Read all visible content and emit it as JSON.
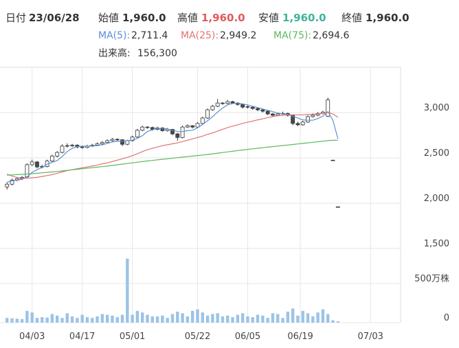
{
  "header": {
    "date_label": "日付",
    "date": "23/06/28",
    "open_label": "始値",
    "open": "1,960.0",
    "high_label": "高値",
    "high": "1,960.0",
    "low_label": "安値",
    "low": "1,960.0",
    "close_label": "終値",
    "close": "1,960.0",
    "volume_label": "出来高:",
    "volume": "156,300"
  },
  "chart_data": {
    "type": "candlestick",
    "open": [
      2180,
      2210,
      2255,
      2270,
      2290,
      2425,
      2455,
      2400,
      2405,
      2465,
      2520,
      2560,
      2630,
      2635,
      2640,
      2620,
      2615,
      2630,
      2640,
      2655,
      2670,
      2690,
      2705,
      2700,
      2650,
      2690,
      2730,
      2805,
      2840,
      2835,
      2815,
      2830,
      2800,
      2815,
      2765,
      2725,
      2840,
      2855,
      2840,
      2880,
      2940,
      3030,
      3070,
      3105,
      3100,
      3120,
      3105,
      3090,
      3065,
      3060,
      3045,
      3030,
      3015,
      2985,
      2970,
      2985,
      2990,
      2970,
      2880,
      2865,
      2895,
      2955,
      2970,
      2990,
      2960,
      2475,
      1960
    ],
    "high": [
      2230,
      2270,
      2285,
      2300,
      2440,
      2480,
      2465,
      2425,
      2480,
      2535,
      2575,
      2650,
      2660,
      2655,
      2650,
      2635,
      2645,
      2655,
      2670,
      2685,
      2705,
      2720,
      2715,
      2705,
      2700,
      2745,
      2820,
      2855,
      2850,
      2845,
      2845,
      2840,
      2830,
      2820,
      2775,
      2855,
      2870,
      2860,
      2895,
      2955,
      3045,
      3085,
      3150,
      3115,
      3140,
      3130,
      3115,
      3100,
      3080,
      3070,
      3055,
      3040,
      3025,
      2995,
      3000,
      3010,
      3000,
      2980,
      2900,
      2910,
      2970,
      2990,
      3005,
      3020,
      3165,
      2475,
      1960
    ],
    "low": [
      2150,
      2195,
      2240,
      2255,
      2280,
      2410,
      2385,
      2385,
      2395,
      2450,
      2505,
      2550,
      2615,
      2620,
      2605,
      2600,
      2605,
      2620,
      2630,
      2645,
      2660,
      2680,
      2685,
      2630,
      2640,
      2680,
      2720,
      2795,
      2820,
      2800,
      2805,
      2790,
      2790,
      2750,
      2690,
      2715,
      2830,
      2825,
      2830,
      2870,
      2930,
      3020,
      3060,
      3085,
      3090,
      3095,
      3075,
      3045,
      3045,
      3030,
      3015,
      3000,
      2970,
      2955,
      2960,
      2975,
      2955,
      2860,
      2850,
      2855,
      2885,
      2945,
      2960,
      2980,
      2950,
      2475,
      1960
    ],
    "close": [
      2210,
      2255,
      2270,
      2285,
      2425,
      2455,
      2400,
      2405,
      2465,
      2520,
      2560,
      2630,
      2635,
      2640,
      2620,
      2615,
      2630,
      2640,
      2655,
      2670,
      2690,
      2705,
      2700,
      2650,
      2690,
      2730,
      2805,
      2840,
      2835,
      2815,
      2830,
      2800,
      2815,
      2765,
      2725,
      2840,
      2855,
      2840,
      2880,
      2940,
      3030,
      3070,
      3105,
      3100,
      3120,
      3105,
      3090,
      3060,
      3060,
      3045,
      3030,
      3015,
      2985,
      2970,
      2985,
      2990,
      2970,
      2880,
      2865,
      2895,
      2955,
      2970,
      2990,
      3005,
      3140,
      2475,
      1960
    ],
    "up_color": "#ffffff",
    "down_color": "#4a4a4a",
    "xlim": [
      -1.4,
      78.5
    ],
    "xticks": [
      {
        "value": 5,
        "label": "04/03"
      },
      {
        "value": 15,
        "label": "04/17"
      },
      {
        "value": 25,
        "label": "05/01"
      },
      {
        "value": 38,
        "label": "05/22"
      },
      {
        "value": 48,
        "label": "06/05"
      },
      {
        "value": 58.5,
        "label": "06/19"
      },
      {
        "value": 72.5,
        "label": "07/03"
      }
    ],
    "ylim": [
      1500,
      3500
    ],
    "yticks": [
      {
        "value": 1500,
        "label": "1,500"
      },
      {
        "value": 2000,
        "label": "2,000"
      },
      {
        "value": 2500,
        "label": "2,500"
      },
      {
        "value": 3000,
        "label": "3,000"
      }
    ],
    "grid": true,
    "moving_averages": [
      {
        "name": "MA(5):",
        "value_label": "2,711.4",
        "color": "#5b8fd4",
        "values": [
          2230,
          2245,
          2255,
          2265,
          2290,
          2340,
          2370,
          2395,
          2430,
          2450,
          2470,
          2515,
          2570,
          2605,
          2625,
          2630,
          2630,
          2630,
          2635,
          2645,
          2660,
          2675,
          2685,
          2685,
          2690,
          2695,
          2715,
          2745,
          2790,
          2810,
          2825,
          2825,
          2820,
          2805,
          2790,
          2790,
          2800,
          2805,
          2830,
          2870,
          2910,
          2955,
          3005,
          3050,
          3085,
          3100,
          3105,
          3095,
          3085,
          3070,
          3055,
          3040,
          3025,
          3010,
          2995,
          2985,
          2980,
          2960,
          2940,
          2920,
          2915,
          2915,
          2935,
          2960,
          3010,
          2915,
          2711.4
        ]
      },
      {
        "name": "MA(25):",
        "value_label": "2,949.2",
        "color": "#e07272",
        "values": [
          2320,
          2300,
          2285,
          2275,
          2275,
          2280,
          2285,
          2295,
          2305,
          2315,
          2330,
          2345,
          2360,
          2370,
          2380,
          2390,
          2400,
          2410,
          2420,
          2435,
          2445,
          2460,
          2475,
          2490,
          2505,
          2525,
          2545,
          2570,
          2590,
          2605,
          2620,
          2635,
          2645,
          2655,
          2665,
          2680,
          2695,
          2710,
          2725,
          2740,
          2760,
          2775,
          2795,
          2815,
          2835,
          2850,
          2865,
          2880,
          2895,
          2905,
          2920,
          2930,
          2945,
          2955,
          2965,
          2970,
          2975,
          2975,
          2975,
          2975,
          2980,
          2980,
          2985,
          2990,
          3000,
          2985,
          2949.2
        ]
      },
      {
        "name": "MA(75):",
        "value_label": "2,694.6",
        "color": "#5cb85c",
        "values": [
          2310,
          2312,
          2315,
          2318,
          2322,
          2326,
          2330,
          2335,
          2340,
          2345,
          2350,
          2356,
          2362,
          2368,
          2374,
          2380,
          2386,
          2392,
          2398,
          2404,
          2410,
          2417,
          2424,
          2431,
          2438,
          2445,
          2452,
          2459,
          2466,
          2472,
          2478,
          2484,
          2490,
          2496,
          2502,
          2508,
          2514,
          2520,
          2526,
          2532,
          2538,
          2545,
          2552,
          2559,
          2566,
          2573,
          2580,
          2587,
          2594,
          2600,
          2606,
          2612,
          2618,
          2624,
          2630,
          2636,
          2642,
          2648,
          2654,
          2660,
          2666,
          2672,
          2678,
          2684,
          2690,
          2694,
          2694.6
        ]
      }
    ],
    "volume": {
      "color": "#9cc3e6",
      "ylim": [
        0,
        950
      ],
      "yticks": [
        0,
        {
          "value": 500,
          "label": "500万株"
        }
      ],
      "values": [
        60,
        55,
        50,
        45,
        150,
        130,
        60,
        70,
        65,
        110,
        90,
        60,
        120,
        80,
        60,
        100,
        70,
        60,
        80,
        110,
        100,
        90,
        70,
        100,
        820,
        100,
        150,
        130,
        100,
        80,
        80,
        90,
        60,
        110,
        140,
        120,
        80,
        150,
        170,
        130,
        90,
        110,
        120,
        80,
        90,
        70,
        100,
        120,
        80,
        70,
        100,
        90,
        60,
        120,
        110,
        60,
        140,
        180,
        90,
        150,
        120,
        80,
        130,
        170,
        110,
        30,
        15.63
      ]
    }
  }
}
